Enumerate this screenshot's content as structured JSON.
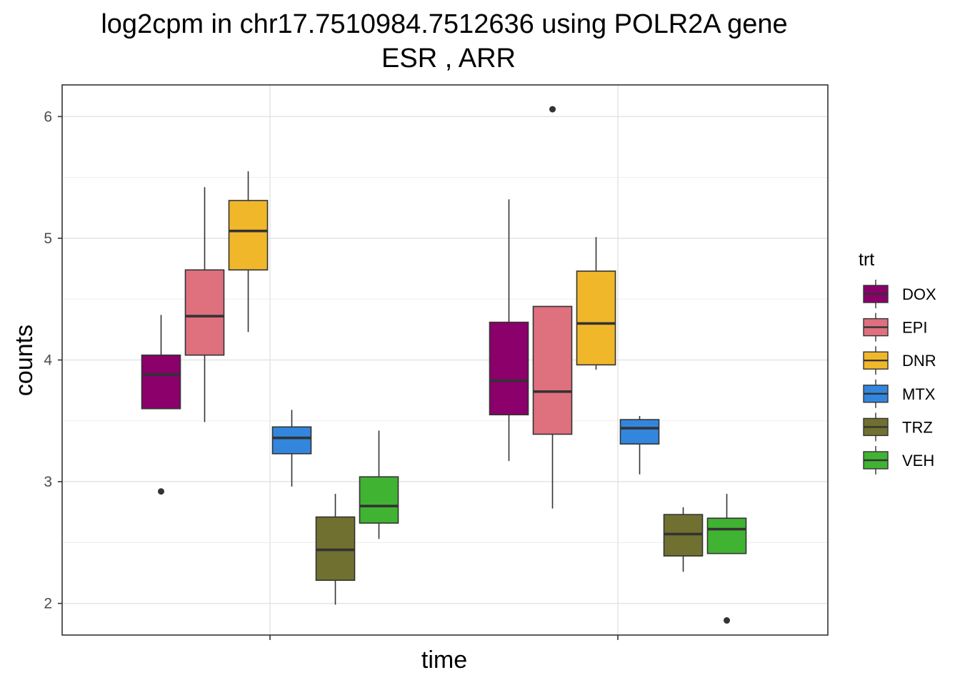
{
  "chart_data": {
    "type": "boxplot",
    "title": "log2cpm in  chr17.7510984.7512636  using  POLR2A  gene",
    "subtitle": "ESR ,  ARR",
    "xlabel": "time",
    "ylabel": "counts",
    "ylim": [
      1.74,
      6.26
    ],
    "yticks": [
      2,
      3,
      4,
      5,
      6
    ],
    "ytick_labels": [
      "2",
      "3",
      "4",
      "5",
      "6"
    ],
    "groups": [
      "",
      ""
    ],
    "grid": true,
    "legend": {
      "title": "trt",
      "position": "right",
      "entries": [
        {
          "name": "DOX",
          "color": "#8B006B"
        },
        {
          "name": "EPI",
          "color": "#DF707E"
        },
        {
          "name": "DNR",
          "color": "#F1B72B"
        },
        {
          "name": "MTX",
          "color": "#3386DD"
        },
        {
          "name": "TRZ",
          "color": "#707031"
        },
        {
          "name": "VEH",
          "color": "#41B333"
        }
      ]
    },
    "series": [
      {
        "name": "DOX",
        "group": 0,
        "whisker_low": 3.6,
        "q1": 3.6,
        "median": 3.88,
        "q3": 4.04,
        "whisker_high": 4.37,
        "outliers": [
          2.92
        ]
      },
      {
        "name": "EPI",
        "group": 0,
        "whisker_low": 3.49,
        "q1": 4.04,
        "median": 4.36,
        "q3": 4.74,
        "whisker_high": 5.42,
        "outliers": []
      },
      {
        "name": "DNR",
        "group": 0,
        "whisker_low": 4.23,
        "q1": 4.74,
        "median": 5.06,
        "q3": 5.31,
        "whisker_high": 5.55,
        "outliers": []
      },
      {
        "name": "MTX",
        "group": 0,
        "whisker_low": 2.96,
        "q1": 3.23,
        "median": 3.36,
        "q3": 3.45,
        "whisker_high": 3.59,
        "outliers": []
      },
      {
        "name": "TRZ",
        "group": 0,
        "whisker_low": 1.99,
        "q1": 2.19,
        "median": 2.44,
        "q3": 2.71,
        "whisker_high": 2.9,
        "outliers": []
      },
      {
        "name": "VEH",
        "group": 0,
        "whisker_low": 2.53,
        "q1": 2.66,
        "median": 2.8,
        "q3": 3.04,
        "whisker_high": 3.42,
        "outliers": []
      },
      {
        "name": "DOX",
        "group": 1,
        "whisker_low": 3.17,
        "q1": 3.55,
        "median": 3.83,
        "q3": 4.31,
        "whisker_high": 5.32,
        "outliers": []
      },
      {
        "name": "EPI",
        "group": 1,
        "whisker_low": 2.78,
        "q1": 3.39,
        "median": 3.74,
        "q3": 4.44,
        "whisker_high": 4.44,
        "outliers": [
          6.06
        ]
      },
      {
        "name": "DNR",
        "group": 1,
        "whisker_low": 3.92,
        "q1": 3.96,
        "median": 4.3,
        "q3": 4.73,
        "whisker_high": 5.01,
        "outliers": []
      },
      {
        "name": "MTX",
        "group": 1,
        "whisker_low": 3.06,
        "q1": 3.31,
        "median": 3.44,
        "q3": 3.51,
        "whisker_high": 3.54,
        "outliers": []
      },
      {
        "name": "TRZ",
        "group": 1,
        "whisker_low": 2.26,
        "q1": 2.39,
        "median": 2.57,
        "q3": 2.73,
        "whisker_high": 2.79,
        "outliers": []
      },
      {
        "name": "VEH",
        "group": 1,
        "whisker_low": 2.41,
        "q1": 2.41,
        "median": 2.61,
        "q3": 2.7,
        "whisker_high": 2.9,
        "outliers": [
          1.86
        ]
      }
    ]
  }
}
